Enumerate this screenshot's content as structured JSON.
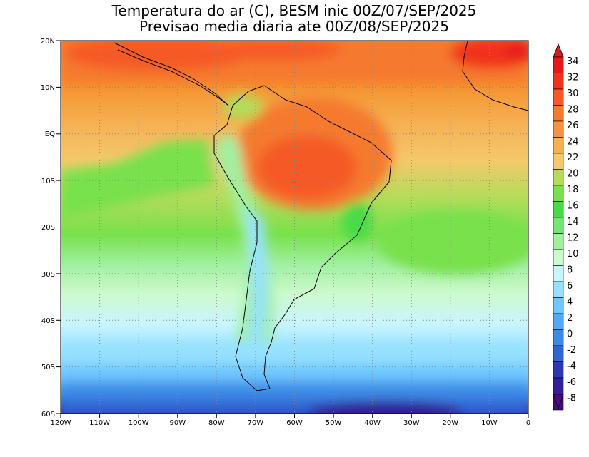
{
  "title": {
    "line1": "Temperatura do ar (C), BESM inic 00Z/07/SEP/2025",
    "line2": "Previsao media diaria ate 00Z/08/SEP/2025"
  },
  "map": {
    "lon_range": [
      -120,
      0
    ],
    "lat_range": [
      -60,
      20
    ],
    "lon_ticks": [
      "120W",
      "110W",
      "100W",
      "90W",
      "80W",
      "70W",
      "60W",
      "50W",
      "40W",
      "30W",
      "20W",
      "10W",
      "0"
    ],
    "lat_ticks": [
      "20N",
      "10N",
      "EQ",
      "10S",
      "20S",
      "30S",
      "40S",
      "50S",
      "60S"
    ],
    "grid": "dotted"
  },
  "colorbar": {
    "labels": [
      "34",
      "32",
      "30",
      "28",
      "26",
      "24",
      "22",
      "20",
      "18",
      "16",
      "14",
      "12",
      "10",
      "8",
      "6",
      "4",
      "2",
      "0",
      "-2",
      "-4",
      "-6",
      "-8"
    ],
    "colors": [
      "#e41a1a",
      "#f0331c",
      "#f55a26",
      "#f57a2e",
      "#f59440",
      "#f5b052",
      "#f5c86a",
      "#b4dc5a",
      "#78e14b",
      "#46dc46",
      "#73e673",
      "#a0f0a0",
      "#cdfacd",
      "#c8f5ff",
      "#96e1ff",
      "#6ec8ff",
      "#50aaf5",
      "#3c8ce6",
      "#3264d2",
      "#2d37b4",
      "#321e96",
      "#460a78"
    ],
    "over_color": "#e11919",
    "under_color": "#4b0a78"
  }
}
